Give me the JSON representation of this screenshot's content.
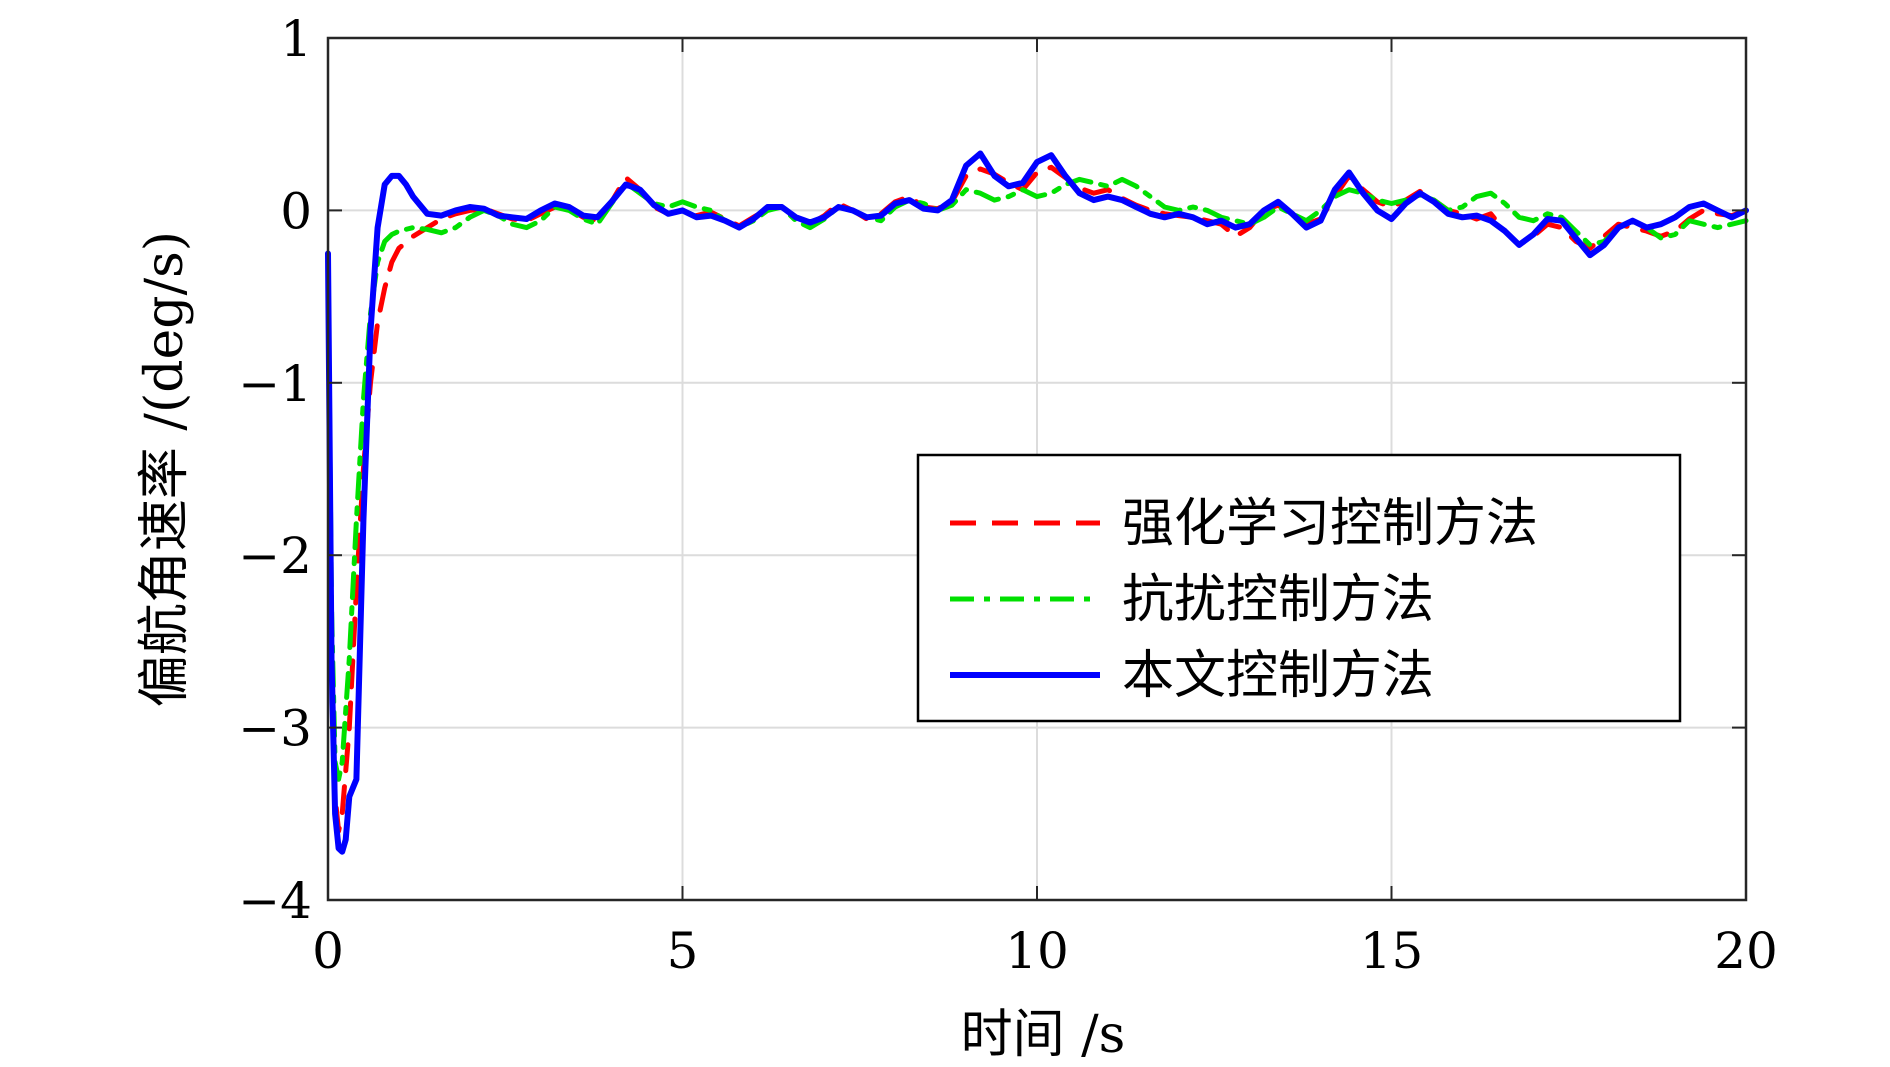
{
  "chart_data": {
    "type": "line",
    "xlabel": "时间 /s",
    "ylabel": "偏航角速率 /(deg/s)",
    "xlim": [
      0,
      20
    ],
    "ylim": [
      -4,
      1
    ],
    "xticks": [
      0,
      5,
      10,
      15,
      20
    ],
    "xtick_labels": [
      "0",
      "5",
      "10",
      "15",
      "20"
    ],
    "yticks": [
      1,
      0,
      -1,
      -2,
      -3,
      -4
    ],
    "ytick_labels": [
      "1",
      "0",
      "−1",
      "−2",
      "−3",
      "−4"
    ],
    "grid": true,
    "legend_position": "center-right",
    "series": [
      {
        "name": "强化学习控制方法",
        "color": "#ff0000",
        "style": "dashed",
        "x": [
          0,
          0.05,
          0.1,
          0.15,
          0.2,
          0.3,
          0.4,
          0.5,
          0.6,
          0.7,
          0.8,
          0.9,
          1.0,
          1.2,
          1.4,
          1.6,
          1.8,
          2.0,
          2.2,
          2.4,
          2.6,
          2.8,
          3.0,
          3.2,
          3.4,
          3.6,
          3.8,
          4.0,
          4.2,
          4.4,
          4.6,
          4.8,
          5.0,
          5.2,
          5.4,
          5.6,
          5.8,
          6.0,
          6.2,
          6.4,
          6.6,
          6.8,
          7.0,
          7.2,
          7.4,
          7.6,
          7.8,
          8.0,
          8.2,
          8.4,
          8.6,
          8.8,
          9.0,
          9.2,
          9.4,
          9.6,
          9.8,
          10.0,
          10.2,
          10.4,
          10.6,
          10.8,
          11.0,
          11.2,
          11.4,
          11.6,
          11.8,
          12.0,
          12.2,
          12.4,
          12.6,
          12.8,
          13.0,
          13.2,
          13.4,
          13.6,
          13.8,
          14.0,
          14.2,
          14.4,
          14.6,
          14.8,
          15.0,
          15.2,
          15.4,
          15.6,
          15.8,
          16.0,
          16.2,
          16.4,
          16.6,
          16.8,
          17.0,
          17.2,
          17.4,
          17.6,
          17.8,
          18.0,
          18.2,
          18.4,
          18.6,
          18.8,
          19.0,
          19.2,
          19.4,
          19.6,
          19.8,
          20.0
        ],
        "y": [
          -0.3,
          -2.5,
          -3.4,
          -3.6,
          -3.5,
          -3.0,
          -2.2,
          -1.5,
          -1.0,
          -0.65,
          -0.45,
          -0.3,
          -0.22,
          -0.15,
          -0.1,
          -0.05,
          -0.02,
          0.0,
          0.01,
          -0.02,
          -0.05,
          -0.06,
          -0.02,
          0.02,
          0.01,
          -0.04,
          -0.06,
          0.05,
          0.19,
          0.12,
          0.02,
          -0.02,
          0.0,
          -0.03,
          -0.01,
          -0.05,
          -0.09,
          -0.04,
          0.01,
          0.02,
          -0.04,
          -0.08,
          -0.03,
          0.04,
          0.0,
          -0.05,
          -0.02,
          0.05,
          0.08,
          0.02,
          0.01,
          0.05,
          0.2,
          0.24,
          0.21,
          0.16,
          0.12,
          0.22,
          0.25,
          0.19,
          0.13,
          0.1,
          0.12,
          0.07,
          0.03,
          0.0,
          -0.02,
          -0.03,
          -0.04,
          -0.06,
          -0.08,
          -0.15,
          -0.1,
          0.0,
          0.03,
          -0.02,
          -0.08,
          -0.05,
          0.08,
          0.2,
          0.12,
          0.05,
          0.02,
          0.06,
          0.11,
          0.06,
          0.0,
          -0.02,
          -0.05,
          -0.02,
          -0.12,
          -0.2,
          -0.15,
          -0.08,
          -0.1,
          -0.18,
          -0.22,
          -0.15,
          -0.08,
          -0.1,
          -0.12,
          -0.15,
          -0.12,
          -0.05,
          0.0,
          -0.02,
          -0.03,
          0.0
        ]
      },
      {
        "name": "抗扰控制方法",
        "color": "#00e000",
        "style": "dashdot",
        "x": [
          0,
          0.05,
          0.1,
          0.15,
          0.2,
          0.3,
          0.4,
          0.5,
          0.6,
          0.7,
          0.8,
          0.9,
          1.0,
          1.2,
          1.4,
          1.6,
          1.8,
          2.0,
          2.2,
          2.4,
          2.6,
          2.8,
          3.0,
          3.2,
          3.4,
          3.6,
          3.8,
          4.0,
          4.2,
          4.4,
          4.6,
          4.8,
          5.0,
          5.2,
          5.4,
          5.6,
          5.8,
          6.0,
          6.2,
          6.4,
          6.6,
          6.8,
          7.0,
          7.2,
          7.4,
          7.6,
          7.8,
          8.0,
          8.2,
          8.4,
          8.6,
          8.8,
          9.0,
          9.2,
          9.4,
          9.6,
          9.8,
          10.0,
          10.2,
          10.4,
          10.6,
          10.8,
          11.0,
          11.2,
          11.4,
          11.6,
          11.8,
          12.0,
          12.2,
          12.4,
          12.6,
          12.8,
          13.0,
          13.2,
          13.4,
          13.6,
          13.8,
          14.0,
          14.2,
          14.4,
          14.6,
          14.8,
          15.0,
          15.2,
          15.4,
          15.6,
          15.8,
          16.0,
          16.2,
          16.4,
          16.6,
          16.8,
          17.0,
          17.2,
          17.4,
          17.6,
          17.8,
          18.0,
          18.2,
          18.4,
          18.6,
          18.8,
          19.0,
          19.2,
          19.4,
          19.6,
          19.8,
          20.0
        ],
        "y": [
          -0.3,
          -2.3,
          -3.2,
          -3.3,
          -3.2,
          -2.6,
          -1.8,
          -1.1,
          -0.6,
          -0.3,
          -0.18,
          -0.14,
          -0.12,
          -0.1,
          -0.11,
          -0.13,
          -0.1,
          -0.04,
          0.0,
          -0.03,
          -0.08,
          -0.1,
          -0.06,
          0.02,
          0.0,
          -0.05,
          -0.08,
          0.04,
          0.16,
          0.1,
          0.04,
          0.02,
          0.05,
          0.02,
          0.0,
          -0.06,
          -0.1,
          -0.06,
          0.0,
          0.02,
          -0.06,
          -0.1,
          -0.05,
          0.02,
          0.0,
          -0.04,
          -0.06,
          0.02,
          0.06,
          0.04,
          0.0,
          0.03,
          0.12,
          0.1,
          0.06,
          0.08,
          0.12,
          0.08,
          0.1,
          0.15,
          0.18,
          0.16,
          0.14,
          0.18,
          0.14,
          0.08,
          0.02,
          0.0,
          0.02,
          0.0,
          -0.04,
          -0.06,
          -0.08,
          -0.04,
          0.02,
          -0.02,
          -0.06,
          0.0,
          0.08,
          0.12,
          0.1,
          0.06,
          0.04,
          0.06,
          0.09,
          0.06,
          0.0,
          0.02,
          0.08,
          0.1,
          0.04,
          -0.04,
          -0.06,
          -0.02,
          -0.04,
          -0.12,
          -0.2,
          -0.18,
          -0.1,
          -0.06,
          -0.1,
          -0.16,
          -0.14,
          -0.06,
          -0.08,
          -0.1,
          -0.08,
          -0.06
        ]
      },
      {
        "name": "本文控制方法",
        "color": "#0000ff",
        "style": "solid",
        "x": [
          0,
          0.05,
          0.1,
          0.15,
          0.2,
          0.25,
          0.3,
          0.4,
          0.5,
          0.6,
          0.7,
          0.8,
          0.9,
          1.0,
          1.1,
          1.2,
          1.4,
          1.6,
          1.8,
          2.0,
          2.2,
          2.4,
          2.6,
          2.8,
          3.0,
          3.2,
          3.4,
          3.6,
          3.8,
          4.0,
          4.2,
          4.4,
          4.6,
          4.8,
          5.0,
          5.2,
          5.4,
          5.6,
          5.8,
          6.0,
          6.2,
          6.4,
          6.6,
          6.8,
          7.0,
          7.2,
          7.4,
          7.6,
          7.8,
          8.0,
          8.2,
          8.4,
          8.6,
          8.8,
          9.0,
          9.2,
          9.4,
          9.6,
          9.8,
          10.0,
          10.2,
          10.4,
          10.6,
          10.8,
          11.0,
          11.2,
          11.4,
          11.6,
          11.8,
          12.0,
          12.2,
          12.4,
          12.6,
          12.8,
          13.0,
          13.2,
          13.4,
          13.6,
          13.8,
          14.0,
          14.2,
          14.4,
          14.6,
          14.8,
          15.0,
          15.2,
          15.4,
          15.6,
          15.8,
          16.0,
          16.2,
          16.4,
          16.6,
          16.8,
          17.0,
          17.2,
          17.4,
          17.6,
          17.8,
          18.0,
          18.2,
          18.4,
          18.6,
          18.8,
          19.0,
          19.2,
          19.4,
          19.6,
          19.8,
          20.0
        ],
        "y": [
          -0.25,
          -2.6,
          -3.5,
          -3.7,
          -3.72,
          -3.65,
          -3.4,
          -3.3,
          -1.8,
          -0.7,
          -0.1,
          0.15,
          0.2,
          0.2,
          0.15,
          0.08,
          -0.02,
          -0.03,
          0.0,
          0.02,
          0.01,
          -0.03,
          -0.04,
          -0.05,
          0.0,
          0.04,
          0.02,
          -0.03,
          -0.04,
          0.05,
          0.15,
          0.12,
          0.03,
          -0.02,
          0.0,
          -0.04,
          -0.03,
          -0.06,
          -0.1,
          -0.05,
          0.02,
          0.02,
          -0.04,
          -0.07,
          -0.04,
          0.02,
          0.0,
          -0.04,
          -0.03,
          0.04,
          0.06,
          0.01,
          0.0,
          0.06,
          0.26,
          0.33,
          0.2,
          0.14,
          0.16,
          0.28,
          0.32,
          0.2,
          0.1,
          0.06,
          0.08,
          0.06,
          0.02,
          -0.02,
          -0.04,
          -0.02,
          -0.04,
          -0.08,
          -0.06,
          -0.1,
          -0.08,
          0.0,
          0.05,
          -0.02,
          -0.1,
          -0.06,
          0.12,
          0.22,
          0.1,
          0.0,
          -0.05,
          0.04,
          0.1,
          0.05,
          -0.02,
          -0.04,
          -0.03,
          -0.06,
          -0.12,
          -0.2,
          -0.14,
          -0.05,
          -0.06,
          -0.16,
          -0.26,
          -0.2,
          -0.1,
          -0.06,
          -0.1,
          -0.08,
          -0.04,
          0.02,
          0.04,
          0.0,
          -0.04,
          0.0
        ]
      }
    ]
  }
}
